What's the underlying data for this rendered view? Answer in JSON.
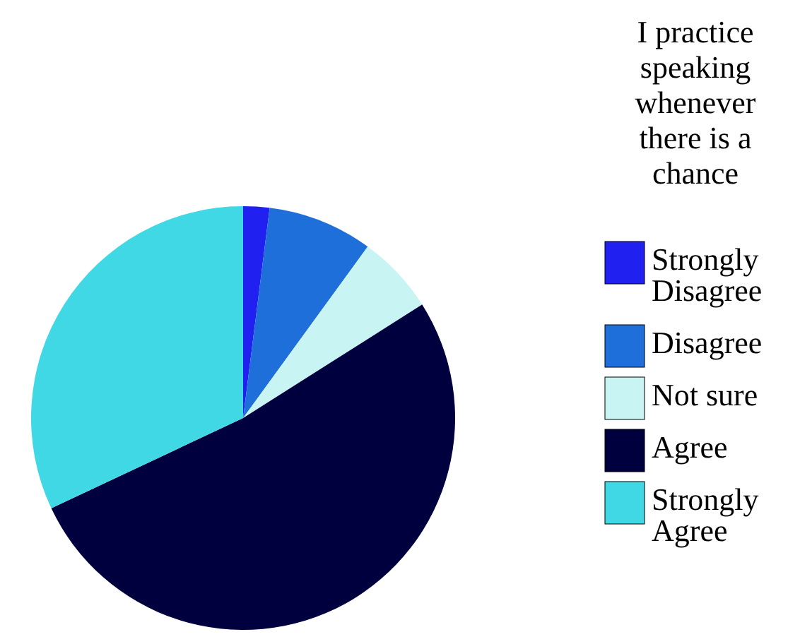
{
  "chart_data": {
    "type": "pie",
    "legend_title": "I practice speaking whenever there is a chance",
    "categories": [
      "Strongly Disagree",
      "Disagree",
      "Not sure",
      "Agree",
      "Strongly Agree"
    ],
    "values": [
      2,
      8,
      6,
      52,
      32
    ],
    "colors": [
      "#2020f0",
      "#1e6fd9",
      "#c8f4f4",
      "#00003f",
      "#3fd8e4"
    ],
    "legend": "right"
  }
}
